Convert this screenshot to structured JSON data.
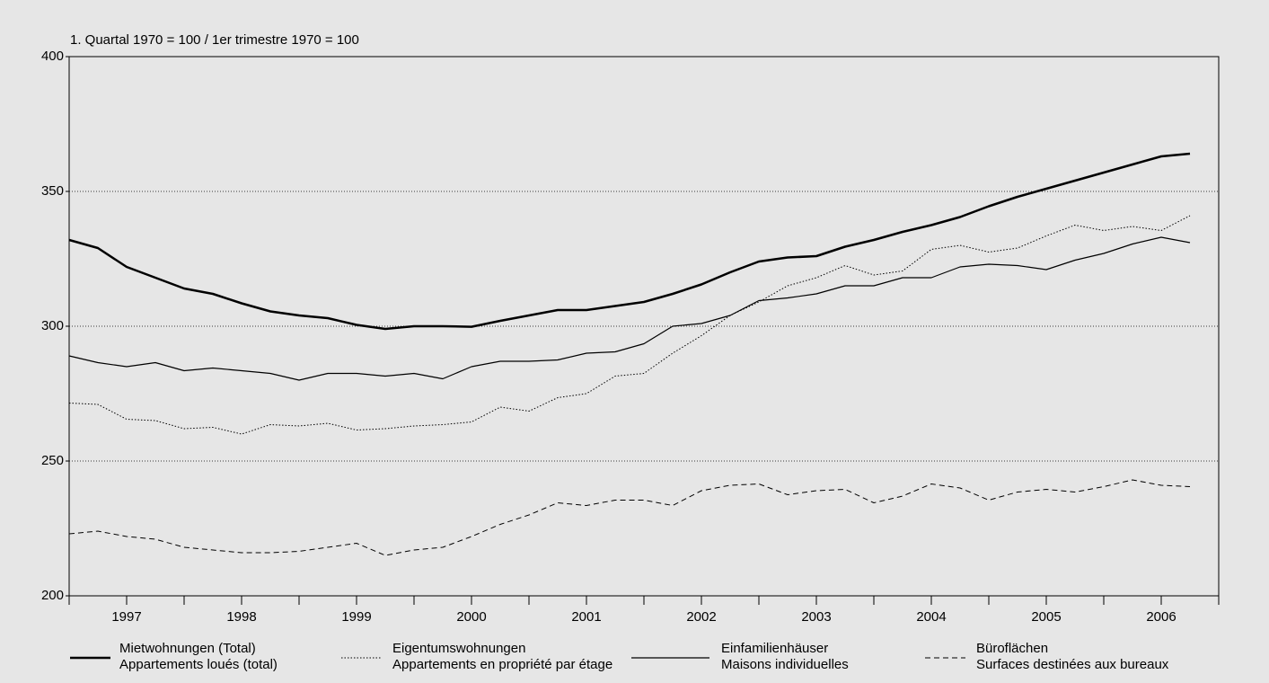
{
  "chart_data": {
    "type": "line",
    "subtitle": "1. Quartal 1970 = 100 / 1er trimestre 1970 = 100",
    "categories": [
      null,
      null,
      "1997",
      null,
      null,
      null,
      "1998",
      null,
      null,
      null,
      "1999",
      null,
      null,
      null,
      "2000",
      null,
      null,
      null,
      "2001",
      null,
      null,
      null,
      "2002",
      null,
      null,
      null,
      "2003",
      null,
      null,
      null,
      "2004",
      null,
      null,
      null,
      "2005",
      null,
      null,
      null,
      "2006",
      null
    ],
    "ylim": [
      200,
      400
    ],
    "yticks": [
      200,
      250,
      300,
      350,
      400
    ],
    "grid": true,
    "series": [
      {
        "name": [
          "Mietwohnungen (Total)",
          "Appartements loués (total)"
        ],
        "color": "#000000",
        "width": 2.5,
        "dash": "none",
        "values": [
          332,
          329,
          322,
          318,
          314,
          312,
          308.5,
          305.5,
          304,
          303,
          300.5,
          299,
          300,
          300,
          299.8,
          302,
          304,
          306,
          306,
          307.5,
          309,
          312,
          315.5,
          320,
          324,
          325.5,
          326,
          329.5,
          332,
          335,
          337.5,
          340.5,
          344.5,
          348,
          351,
          354,
          357,
          360,
          363,
          364
        ]
      },
      {
        "name": [
          "Eigentumswohnungen",
          "Appartements en propriété par étage"
        ],
        "color": "#000000",
        "width": 1,
        "dash": "1.5 2",
        "values": [
          271.5,
          271,
          265.5,
          265,
          262,
          262.5,
          260,
          263.5,
          263,
          264,
          261.5,
          262,
          263,
          263.5,
          264.5,
          270,
          268.5,
          273.5,
          275,
          281.5,
          282.5,
          290,
          296.5,
          304,
          309,
          315,
          318,
          322.5,
          319,
          320.5,
          328.5,
          330,
          327.5,
          329,
          333.5,
          337.5,
          335.5,
          337,
          335.5,
          341
        ]
      },
      {
        "name": [
          "Einfamilienhäuser",
          "Maisons individuelles"
        ],
        "color": "#000000",
        "width": 1.2,
        "dash": "none",
        "values": [
          289,
          286.5,
          285,
          286.5,
          283.5,
          284.5,
          283.5,
          282.5,
          280,
          282.5,
          282.5,
          281.5,
          282.5,
          280.5,
          285,
          287,
          287,
          287.5,
          290,
          290.5,
          293.5,
          300,
          301,
          304,
          309.5,
          310.5,
          312,
          315,
          315,
          318,
          318,
          322,
          323,
          322.5,
          321,
          324.5,
          327,
          330.5,
          333,
          331
        ]
      },
      {
        "name": [
          "Büroflächen",
          "Surfaces destinées aux bureaux"
        ],
        "color": "#000000",
        "width": 1,
        "dash": "6 4",
        "values": [
          223,
          224,
          222,
          221,
          218,
          217,
          216,
          216,
          216.5,
          218,
          219.5,
          215,
          217,
          218,
          222,
          226.5,
          230,
          234.5,
          233.5,
          235.5,
          235.5,
          233.5,
          239,
          241,
          241.5,
          237.5,
          239,
          239.5,
          234.5,
          237,
          241.5,
          240,
          235.5,
          238.5,
          239.5,
          238.5,
          240.5,
          243,
          241,
          240.5
        ]
      }
    ]
  }
}
